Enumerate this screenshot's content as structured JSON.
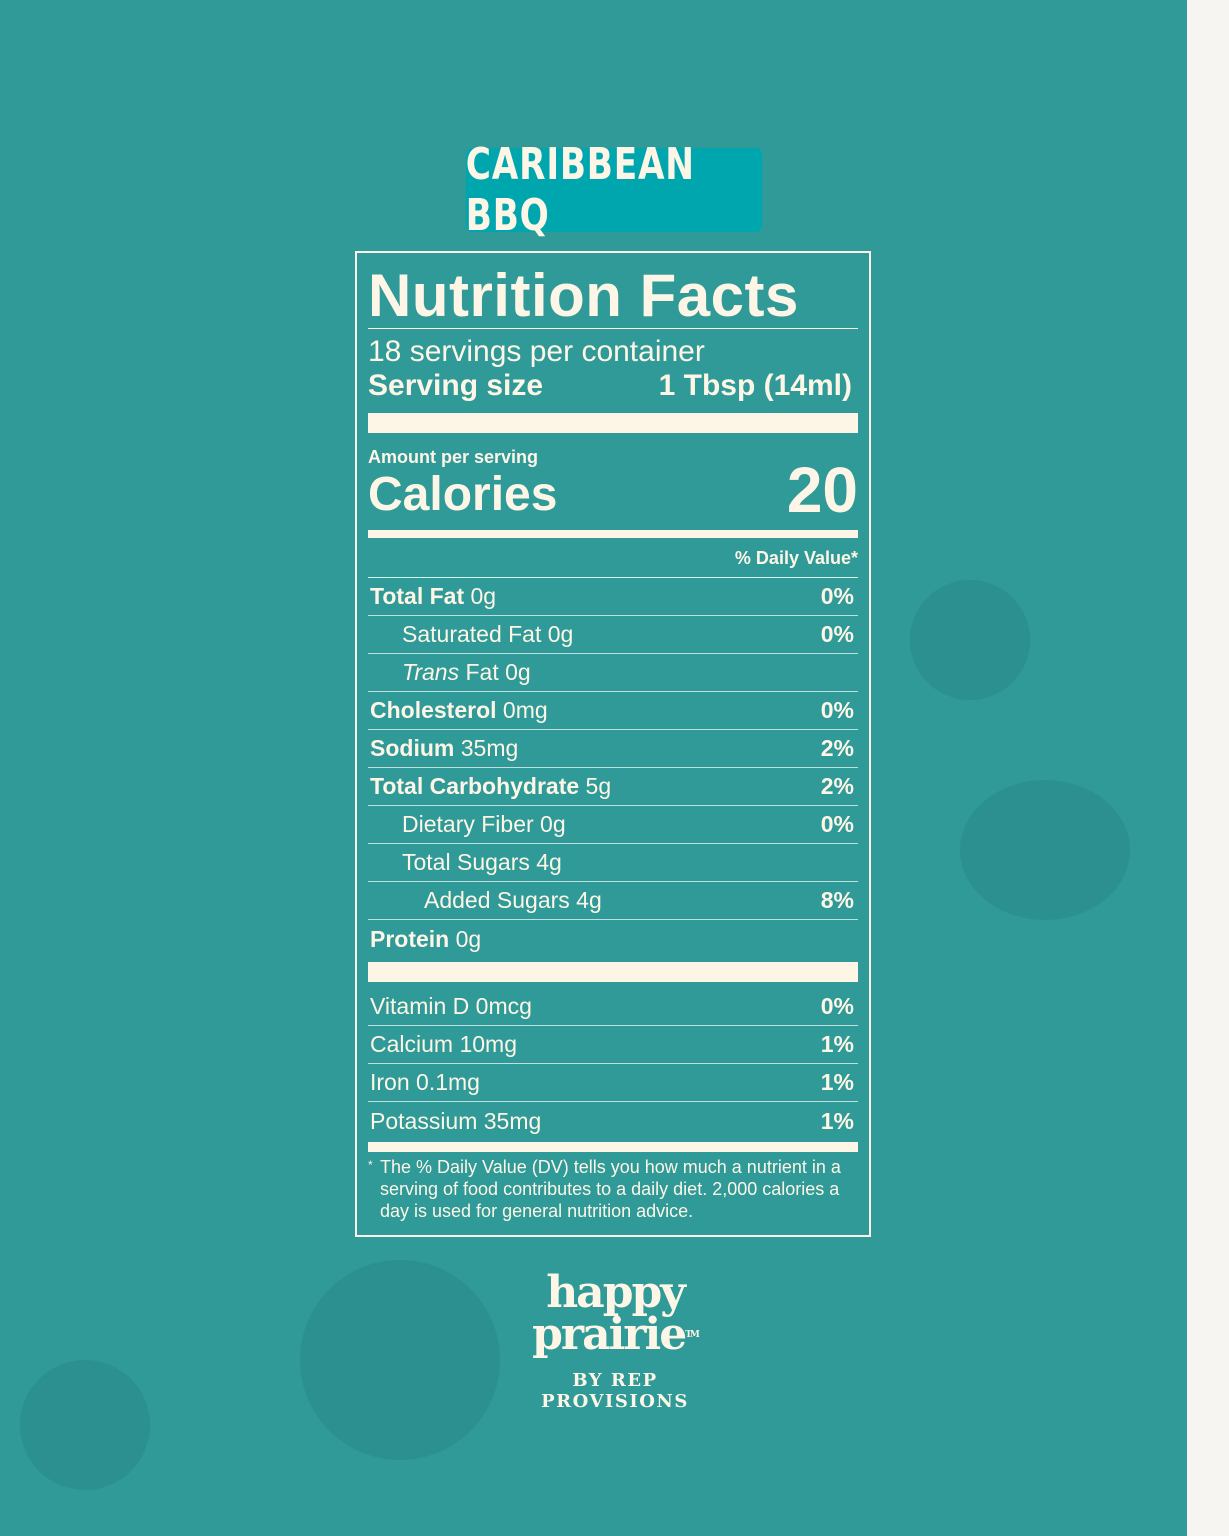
{
  "product": "CARIBBEAN BBQ",
  "label": {
    "title": "Nutrition Facts",
    "servings": "18 servings per container",
    "serving_size_label": "Serving size",
    "serving_size_value": "1 Tbsp (14ml)",
    "amount_per_serving": "Amount per serving",
    "calories_label": "Calories",
    "calories_value": "20",
    "dv_header": "% Daily Value*",
    "nutrients": [
      {
        "name": "Total Fat",
        "amount": "0g",
        "dv": "0%"
      },
      {
        "name": "Saturated Fat 0g",
        "amount": "",
        "dv": "0%"
      },
      {
        "name": "Trans",
        "amount": "Fat 0g",
        "dv": ""
      },
      {
        "name": "Cholesterol",
        "amount": "0mg",
        "dv": "0%"
      },
      {
        "name": "Sodium",
        "amount": "35mg",
        "dv": "2%"
      },
      {
        "name": "Total Carbohydrate",
        "amount": "5g",
        "dv": "2%"
      },
      {
        "name": "Dietary Fiber 0g",
        "amount": "",
        "dv": "0%"
      },
      {
        "name": "Total Sugars 4g",
        "amount": "",
        "dv": ""
      },
      {
        "name": "Added Sugars 4g",
        "amount": "",
        "dv": "8%"
      },
      {
        "name": "Protein",
        "amount": "0g",
        "dv": ""
      }
    ],
    "vitamins": [
      {
        "name": "Vitamin D 0mcg",
        "dv": "0%"
      },
      {
        "name": "Calcium 10mg",
        "dv": "1%"
      },
      {
        "name": "Iron 0.1mg",
        "dv": "1%"
      },
      {
        "name": "Potassium 35mg",
        "dv": "1%"
      }
    ],
    "footnote_mark": "*",
    "footnote": "The % Daily Value (DV) tells you how much a nutrient in a serving of food contributes to a daily diet. 2,000 calories a day is used for general nutrition advice."
  },
  "brand": {
    "line1": "happy",
    "line2": "prairie",
    "tm": "TM",
    "byline": "BY REP PROVISIONS"
  }
}
